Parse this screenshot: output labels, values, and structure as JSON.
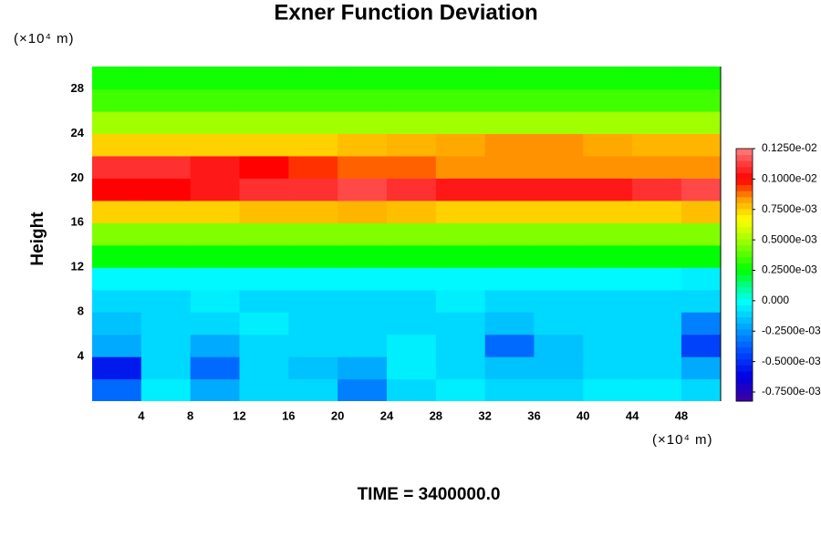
{
  "chart_data": {
    "type": "contour",
    "title": "Exner Function Deviation",
    "ylabel": "Height",
    "xunit": "(×10⁴ m)",
    "yunit": "(×10⁴ m)",
    "footer": "TIME = 3400000.0",
    "xlim": [
      0,
      51.2
    ],
    "ylim": [
      0,
      30
    ],
    "xticks": [
      4,
      8,
      12,
      16,
      20,
      24,
      28,
      32,
      36,
      40,
      44,
      48
    ],
    "yticks": [
      4,
      8,
      12,
      16,
      20,
      24,
      28
    ],
    "x": [
      2,
      6,
      10,
      14,
      18,
      22,
      26,
      30,
      34,
      38,
      42,
      46,
      50
    ],
    "y": [
      1,
      3,
      5,
      7,
      9,
      11,
      13,
      15,
      17,
      19,
      21,
      23,
      25,
      27,
      29
    ],
    "z": [
      [
        -0.00035,
        -5e-05,
        -0.0002,
        -0.0001,
        -0.0001,
        -0.0003,
        -0.0001,
        -5e-05,
        -0.0001,
        -0.0001,
        -5e-05,
        -5e-05,
        -0.0001
      ],
      [
        -0.00055,
        -0.0001,
        -0.00035,
        -0.0001,
        -0.00015,
        -0.0002,
        -5e-05,
        -0.0001,
        -0.00015,
        -0.00015,
        -0.0001,
        -0.0001,
        -0.0002
      ],
      [
        -0.0002,
        -0.0001,
        -0.0002,
        -0.0001,
        -0.0001,
        -0.0001,
        -5e-05,
        -0.0001,
        -0.00035,
        -0.00015,
        -0.0001,
        -0.0001,
        -0.00045
      ],
      [
        -0.00015,
        -0.0001,
        -0.0001,
        -5e-05,
        -0.0001,
        -0.0001,
        -0.0001,
        -0.0001,
        -0.00015,
        -0.0001,
        -0.0001,
        -0.0001,
        -0.0003
      ],
      [
        -0.0001,
        -0.0001,
        -5e-05,
        -0.0001,
        -0.0001,
        -0.0001,
        -0.0001,
        -5e-05,
        -0.0001,
        -0.0001,
        -0.0001,
        -0.0001,
        -0.0001
      ],
      [
        -3e-05,
        -3e-05,
        -3e-05,
        -3e-05,
        -3e-05,
        -3e-05,
        -3e-05,
        -3e-05,
        -3e-05,
        -3e-05,
        -3e-05,
        -3e-05,
        -5e-05
      ],
      [
        0.00025,
        0.00025,
        0.00025,
        0.00025,
        0.00025,
        0.00025,
        0.00025,
        0.00025,
        0.00025,
        0.00025,
        0.00025,
        0.00025,
        0.00025
      ],
      [
        0.00045,
        0.00045,
        0.00045,
        0.00045,
        0.00045,
        0.00045,
        0.00045,
        0.00045,
        0.00045,
        0.00045,
        0.00045,
        0.00045,
        0.00045
      ],
      [
        0.00075,
        0.00075,
        0.00075,
        0.00078,
        0.00078,
        0.0008,
        0.00078,
        0.00075,
        0.00075,
        0.00075,
        0.00075,
        0.00075,
        0.00078
      ],
      [
        0.001,
        0.001,
        0.00105,
        0.0011,
        0.0011,
        0.00115,
        0.0011,
        0.00105,
        0.00105,
        0.00105,
        0.00105,
        0.0011,
        0.00115
      ],
      [
        0.0011,
        0.0011,
        0.00105,
        0.001,
        0.00095,
        0.0009,
        0.0009,
        0.00085,
        0.00085,
        0.00085,
        0.00085,
        0.00085,
        0.00085
      ],
      [
        0.00075,
        0.00075,
        0.00075,
        0.00075,
        0.00075,
        0.00078,
        0.0008,
        0.00082,
        0.00085,
        0.00085,
        0.00082,
        0.0008,
        0.0008
      ],
      [
        0.0005,
        0.0005,
        0.0005,
        0.0005,
        0.0005,
        0.0005,
        0.0005,
        0.0005,
        0.0005,
        0.0005,
        0.0005,
        0.0005,
        0.0005
      ],
      [
        0.00035,
        0.00035,
        0.00035,
        0.00035,
        0.00035,
        0.00035,
        0.00035,
        0.00035,
        0.00035,
        0.00035,
        0.00035,
        0.00035,
        0.00035
      ],
      [
        0.00028,
        0.00028,
        0.00028,
        0.00028,
        0.00028,
        0.00028,
        0.00028,
        0.00028,
        0.00028,
        0.00028,
        0.00028,
        0.00028,
        0.00028
      ]
    ],
    "clim": [
      -0.000825,
      0.00125
    ],
    "cticks": [
      {
        "value": 0.00125,
        "label": "0.1250e-02"
      },
      {
        "value": 0.001,
        "label": "0.1000e-02"
      },
      {
        "value": 0.00075,
        "label": "0.7500e-03"
      },
      {
        "value": 0.0005,
        "label": "0.5000e-03"
      },
      {
        "value": 0.00025,
        "label": "0.2500e-03"
      },
      {
        "value": 0,
        "label": "0.000"
      },
      {
        "value": -0.00025,
        "label": "-0.2500e-03"
      },
      {
        "value": -0.0005,
        "label": "-0.5000e-03"
      },
      {
        "value": -0.00075,
        "label": "-0.7500e-03"
      }
    ]
  }
}
